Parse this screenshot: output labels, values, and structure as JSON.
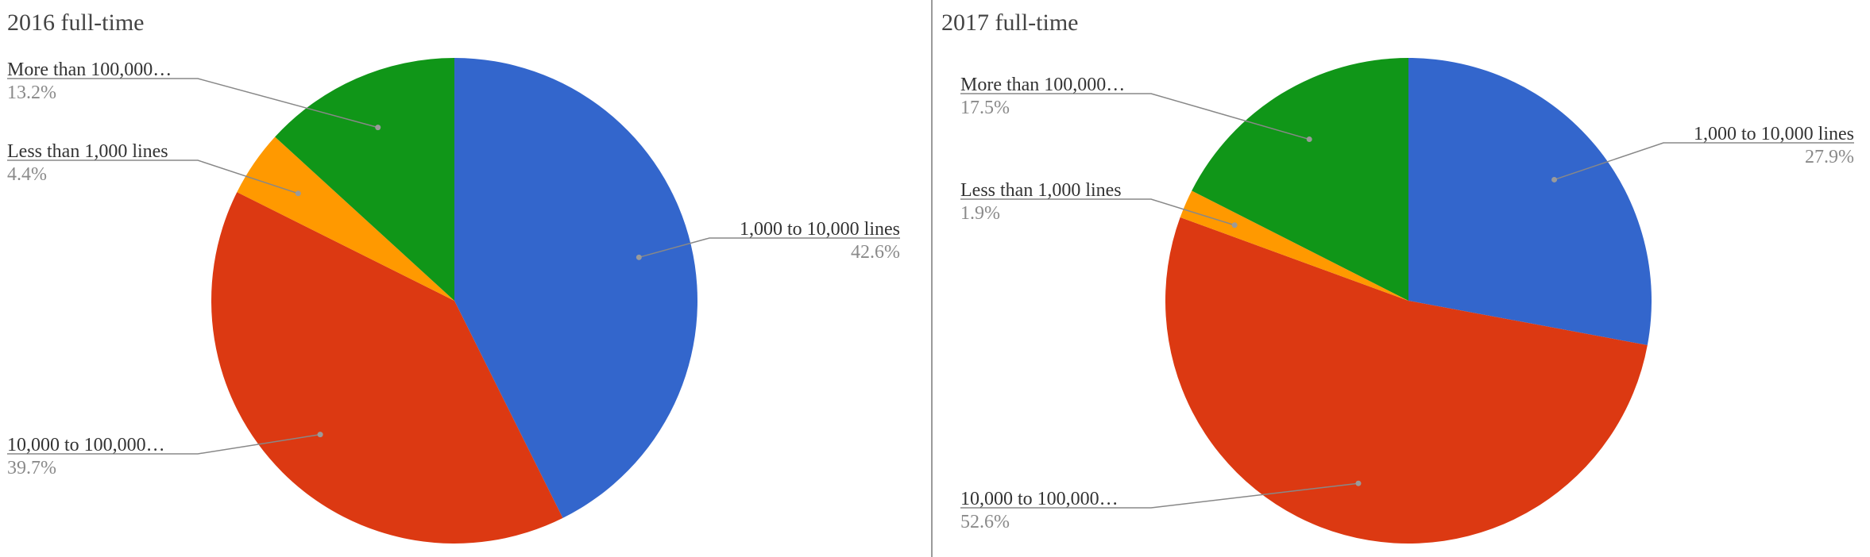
{
  "chart_data": [
    {
      "type": "pie",
      "title": "2016 full-time",
      "slices": [
        {
          "label": "1,000 to 10,000 lines",
          "value": 42.6,
          "display": "42.6%",
          "color": "#3366cc"
        },
        {
          "label": "10,000 to 100,000…",
          "value": 39.7,
          "display": "39.7%",
          "color": "#dc3912"
        },
        {
          "label": "Less than 1,000 lines",
          "value": 4.4,
          "display": "4.4%",
          "color": "#ff9900"
        },
        {
          "label": "More than 100,000…",
          "value": 13.2,
          "display": "13.2%",
          "color": "#109618"
        }
      ]
    },
    {
      "type": "pie",
      "title": "2017 full-time",
      "slices": [
        {
          "label": "1,000 to 10,000 lines",
          "value": 27.9,
          "display": "27.9%",
          "color": "#3366cc"
        },
        {
          "label": "10,000 to 100,000…",
          "value": 52.6,
          "display": "52.6%",
          "color": "#dc3912"
        },
        {
          "label": "Less than 1,000 lines",
          "value": 1.9,
          "display": "1.9%",
          "color": "#ff9900"
        },
        {
          "label": "More than 100,000…",
          "value": 17.5,
          "display": "17.5%",
          "color": "#109618"
        }
      ]
    }
  ]
}
